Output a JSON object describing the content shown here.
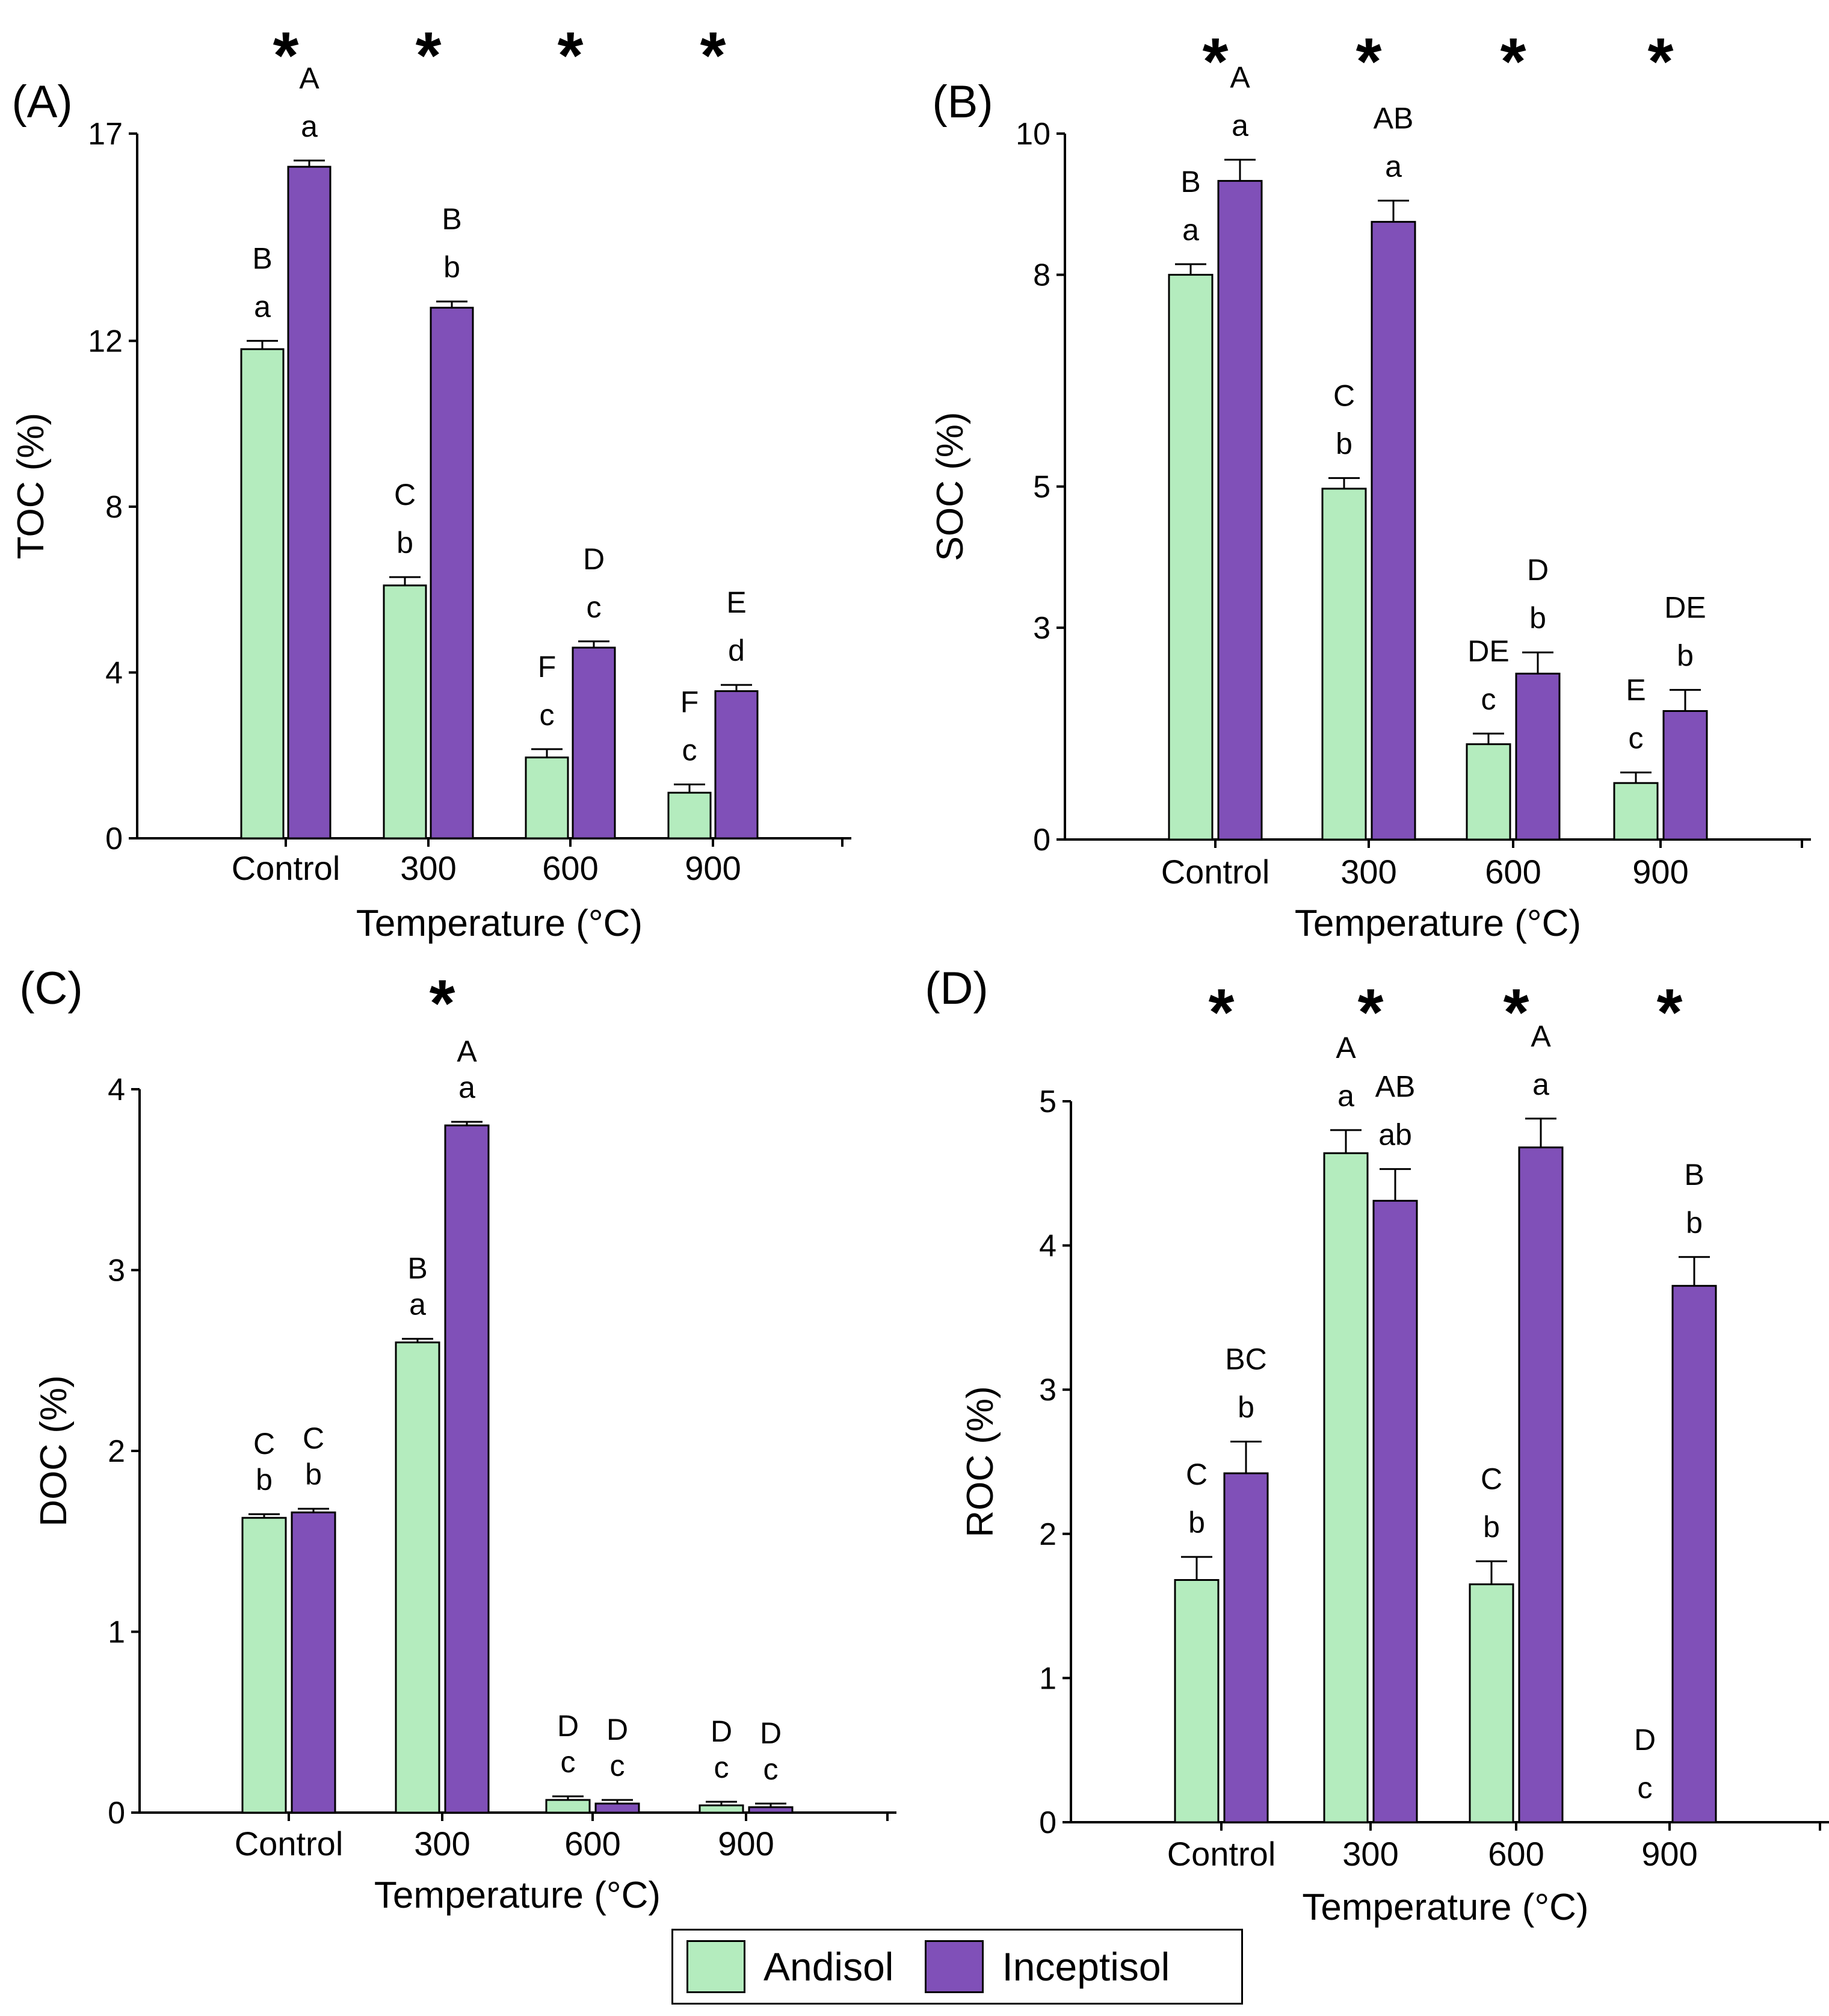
{
  "colors": {
    "andisol": "#B4ECBE",
    "inceptisol": "#8050B8",
    "axis": "#000000"
  },
  "legend": {
    "andisol": "Andisol",
    "inceptisol": "Inceptisol"
  },
  "chart_data": [
    {
      "panel": "(A)",
      "type": "bar",
      "ylabel": "TOC (%)",
      "xlabel": "Temperature (°C)",
      "categories": [
        "Control",
        "300",
        "600",
        "900"
      ],
      "yticks": [
        0,
        4,
        8,
        12,
        17
      ],
      "ylim": [
        0,
        17
      ],
      "series": [
        {
          "name": "Andisol",
          "values": [
            11.8,
            6.1,
            1.95,
            1.1
          ],
          "errors": [
            0.2,
            0.2,
            0.2,
            0.2
          ],
          "upper_letters": [
            "B",
            "C",
            "F",
            "F"
          ],
          "lower_letters": [
            "a",
            "b",
            "c",
            "c"
          ]
        },
        {
          "name": "Inceptisol",
          "values": [
            16.2,
            12.8,
            4.6,
            3.55
          ],
          "errors": [
            0.15,
            0.15,
            0.15,
            0.15
          ],
          "upper_letters": [
            "A",
            "B",
            "D",
            "E"
          ],
          "lower_letters": [
            "a",
            "b",
            "c",
            "d"
          ]
        }
      ],
      "significance": [
        "*",
        "*",
        "*",
        "*"
      ]
    },
    {
      "panel": "(B)",
      "type": "bar",
      "ylabel": "SOC (%)",
      "xlabel": "Temperature (°C)",
      "categories": [
        "Control",
        "300",
        "600",
        "900"
      ],
      "yticks": [
        0,
        3,
        5,
        8,
        10
      ],
      "ylim": [
        0,
        10
      ],
      "series": [
        {
          "name": "Andisol",
          "values": [
            8.0,
            4.97,
            1.35,
            0.8
          ],
          "errors": [
            0.15,
            0.15,
            0.15,
            0.15
          ],
          "upper_letters": [
            "B",
            "C",
            "DE",
            "E"
          ],
          "lower_letters": [
            "a",
            "b",
            "c",
            "c"
          ]
        },
        {
          "name": "Inceptisol",
          "values": [
            9.33,
            8.75,
            2.35,
            1.82
          ],
          "errors": [
            0.3,
            0.3,
            0.3,
            0.3
          ],
          "upper_letters": [
            "A",
            "AB",
            "D",
            "DE"
          ],
          "lower_letters": [
            "a",
            "a",
            "b",
            "b"
          ]
        }
      ],
      "significance": [
        "*",
        "*",
        "*",
        "*"
      ]
    },
    {
      "panel": "(C)",
      "type": "bar",
      "ylabel": "DOC (%)",
      "xlabel": "Temperature (°C)",
      "categories": [
        "Control",
        "300",
        "600",
        "900"
      ],
      "yticks": [
        0,
        1,
        2,
        3,
        4
      ],
      "ylim": [
        0,
        4
      ],
      "series": [
        {
          "name": "Andisol",
          "values": [
            1.63,
            2.6,
            0.07,
            0.04
          ],
          "errors": [
            0.02,
            0.02,
            0.02,
            0.02
          ],
          "upper_letters": [
            "C",
            "B",
            "D",
            "D"
          ],
          "lower_letters": [
            "b",
            "a",
            "c",
            "c"
          ]
        },
        {
          "name": "Inceptisol",
          "values": [
            1.66,
            3.8,
            0.05,
            0.03
          ],
          "errors": [
            0.02,
            0.02,
            0.02,
            0.02
          ],
          "upper_letters": [
            "C",
            "A",
            "D",
            "D"
          ],
          "lower_letters": [
            "b",
            "a",
            "c",
            "c"
          ]
        }
      ],
      "significance": [
        "",
        "*",
        "",
        ""
      ]
    },
    {
      "panel": "(D)",
      "type": "bar",
      "ylabel": "ROC (%)",
      "xlabel": "Temperature (°C)",
      "categories": [
        "Control",
        "300",
        "600",
        "900"
      ],
      "yticks": [
        0,
        1,
        2,
        3,
        4,
        5
      ],
      "ylim": [
        0,
        5
      ],
      "series": [
        {
          "name": "Andisol",
          "values": [
            1.68,
            4.64,
            1.65,
            0
          ],
          "errors": [
            0.16,
            0.16,
            0.16,
            0
          ],
          "upper_letters": [
            "C",
            "A",
            "C",
            "D"
          ],
          "lower_letters": [
            "b",
            "a",
            "b",
            "c"
          ]
        },
        {
          "name": "Inceptisol",
          "values": [
            2.42,
            4.31,
            4.68,
            3.72
          ],
          "errors": [
            0.22,
            0.22,
            0.2,
            0.2
          ],
          "upper_letters": [
            "BC",
            "AB",
            "A",
            "B"
          ],
          "lower_letters": [
            "b",
            "ab",
            "a",
            "b"
          ]
        }
      ],
      "significance": [
        "*",
        "*",
        "*",
        "*"
      ]
    }
  ]
}
